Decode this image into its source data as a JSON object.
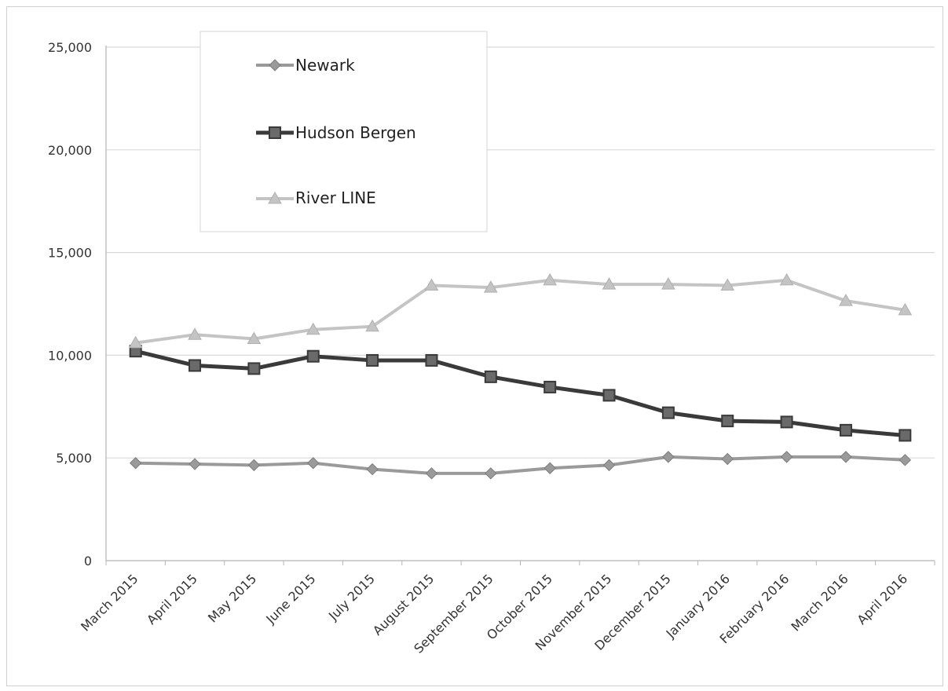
{
  "chart_data": {
    "type": "line",
    "categories": [
      "March 2015",
      "April 2015",
      "May 2015",
      "June 2015",
      "July 2015",
      "August 2015",
      "September 2015",
      "October 2015",
      "November 2015",
      "December 2015",
      "January 2016",
      "February 2016",
      "March 2016",
      "April 2016"
    ],
    "series": [
      {
        "name": "Newark",
        "color": "#9a9a9a",
        "marker": "diamond",
        "values": [
          4750,
          4700,
          4650,
          4750,
          4450,
          4250,
          4250,
          4500,
          4650,
          5050,
          4950,
          5050,
          5050,
          4900
        ]
      },
      {
        "name": "Hudson Bergen",
        "color": "#3a3a3a",
        "marker": "square",
        "values": [
          10200,
          9500,
          9350,
          9950,
          9750,
          9750,
          8950,
          8450,
          8050,
          7200,
          6800,
          6750,
          6350,
          6100
        ]
      },
      {
        "name": "River LINE",
        "color": "#c4c4c4",
        "marker": "triangle",
        "values": [
          10600,
          11000,
          10800,
          11250,
          11400,
          13400,
          13300,
          13650,
          13450,
          13450,
          13400,
          13650,
          12650,
          12200
        ]
      }
    ],
    "y_ticks": [
      "25,000",
      "20,000",
      "15,000",
      "10,000",
      "5,000",
      "0"
    ],
    "y_tick_values": [
      25000,
      20000,
      15000,
      10000,
      5000,
      0
    ],
    "ylim": [
      0,
      25000
    ],
    "grid": true,
    "legend_position": "top-left",
    "title": "",
    "xlabel": "",
    "ylabel": ""
  }
}
